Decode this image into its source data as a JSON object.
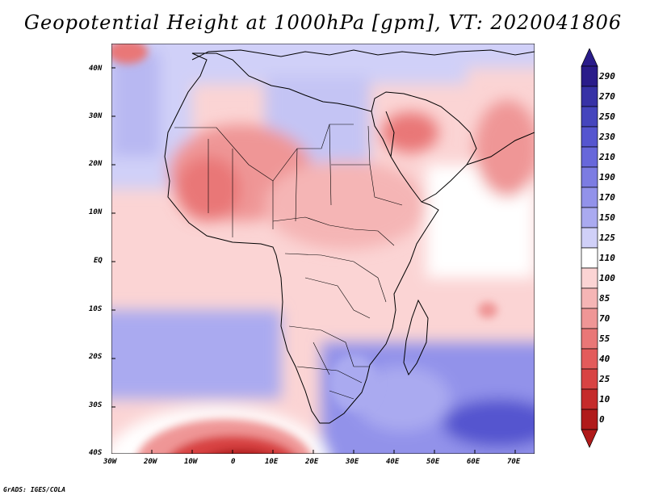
{
  "title": "Geopotential Height at 1000hPa [gpm], VT: 2020041806",
  "credit": "GrADS: IGES/COLA",
  "map": {
    "region": "Africa",
    "lat_labels": [
      "40N",
      "30N",
      "20N",
      "10N",
      "EQ",
      "10S",
      "20S",
      "30S",
      "40S"
    ],
    "lon_labels": [
      "30W",
      "20W",
      "10W",
      "0",
      "10E",
      "20E",
      "30E",
      "40E",
      "50E",
      "60E",
      "70E"
    ]
  },
  "colorbar": {
    "levels": [
      "290",
      "270",
      "250",
      "230",
      "210",
      "190",
      "170",
      "150",
      "125",
      "110",
      "100",
      "85",
      "70",
      "55",
      "40",
      "25",
      "10",
      "0"
    ],
    "colors": [
      "#2a1c8a",
      "#3732a6",
      "#4545bd",
      "#5555cf",
      "#6767da",
      "#7c7ce2",
      "#9292ea",
      "#aaaaf0",
      "#d0d0f8",
      "#ffffff",
      "#fbd4d4",
      "#f5b5b5",
      "#ef9696",
      "#e97777",
      "#e35b5b",
      "#d84343",
      "#c52b2b",
      "#b01a1a"
    ]
  }
}
